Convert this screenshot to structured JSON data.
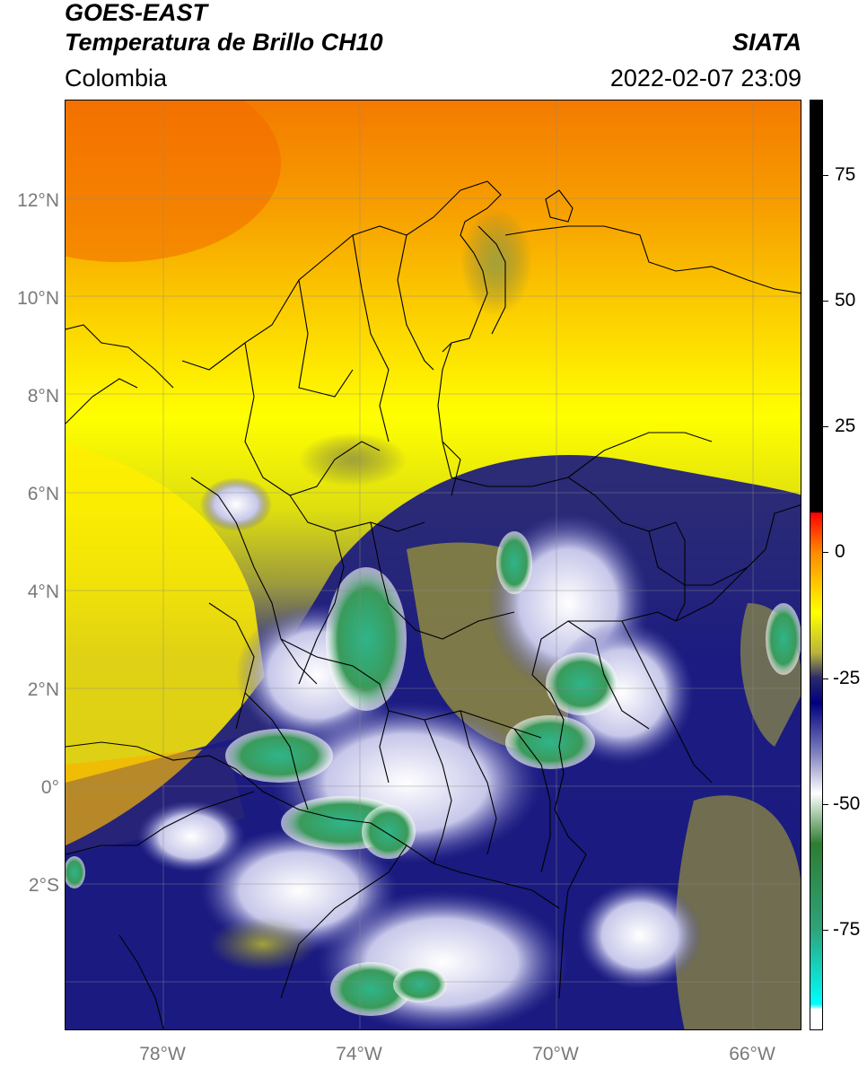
{
  "header": {
    "title_line1": "GOES-EAST",
    "title_line2": "Temperatura de Brillo CH10",
    "region": "Colombia",
    "source": "SIATA",
    "datetime": "2022-02-07 23:09"
  },
  "map": {
    "longitude_ticks": [
      "78°W",
      "74°W",
      "70°W",
      "66°W"
    ],
    "latitude_ticks": [
      "12°N",
      "10°N",
      "8°N",
      "6°N",
      "4°N",
      "2°N",
      "0°",
      "2°S"
    ],
    "extent": {
      "lon_min": -80.0,
      "lon_max": -65.0,
      "lat_min": -5.0,
      "lat_max": 14.0
    }
  },
  "colorbar": {
    "ticks": [
      "75",
      "50",
      "25",
      "0",
      "-25",
      "-50",
      "-75"
    ],
    "tick_values": [
      75,
      50,
      25,
      0,
      -25,
      -50,
      -75
    ],
    "range": [
      -95,
      90
    ],
    "stops": [
      {
        "value": 90,
        "color": "#000000"
      },
      {
        "value": 8,
        "color": "#000000"
      },
      {
        "value": 7.9,
        "color": "#ff0000"
      },
      {
        "value": 0,
        "color": "#ff8a00"
      },
      {
        "value": -12,
        "color": "#ffff00"
      },
      {
        "value": -20,
        "color": "#b9b53a"
      },
      {
        "value": -25,
        "color": "#2a2a6a"
      },
      {
        "value": -30,
        "color": "#000080"
      },
      {
        "value": -40,
        "color": "#8080c0"
      },
      {
        "value": -48,
        "color": "#ffffff"
      },
      {
        "value": -58,
        "color": "#2e7d32"
      },
      {
        "value": -75,
        "color": "#2ea37a"
      },
      {
        "value": -90,
        "color": "#00ffff"
      },
      {
        "value": -91,
        "color": "#ffffff"
      },
      {
        "value": -95,
        "color": "#ffffff"
      }
    ]
  }
}
